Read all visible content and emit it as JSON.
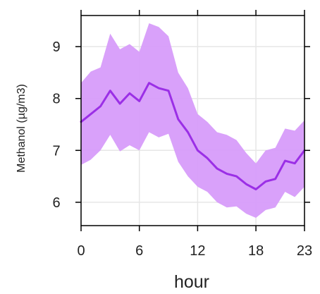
{
  "chart_data": {
    "type": "line",
    "title": "",
    "xlabel": "hour",
    "ylabel": "Methanol (µg/m3)",
    "xlim": [
      0,
      23
    ],
    "ylim": [
      5.55,
      9.6
    ],
    "grid": true,
    "x_ticks": [
      0,
      6,
      12,
      18,
      23
    ],
    "x_tick_labels": [
      "0",
      "6",
      "12",
      "18",
      "23"
    ],
    "y_ticks": [
      6,
      7,
      8,
      9
    ],
    "y_tick_labels": [
      "6",
      "7",
      "8",
      "9"
    ],
    "colors": {
      "line": "#9b2fe6",
      "band": "#d79cfa",
      "grid": "#e6e6e6",
      "frame": "#000000"
    },
    "series": [
      {
        "x": [
          0,
          1,
          2,
          3,
          4,
          5,
          6,
          7,
          8,
          9,
          10,
          11,
          12,
          13,
          14,
          15,
          16,
          17,
          18,
          19,
          20,
          21,
          22,
          23
        ],
        "values": [
          7.55,
          7.7,
          7.85,
          8.15,
          7.9,
          8.1,
          7.95,
          8.3,
          8.2,
          8.15,
          7.6,
          7.35,
          7.0,
          6.85,
          6.65,
          6.55,
          6.5,
          6.35,
          6.25,
          6.4,
          6.45,
          6.8,
          6.75,
          7.0
        ],
        "lower": [
          6.72,
          6.82,
          7.0,
          7.3,
          6.98,
          7.1,
          7.0,
          7.35,
          7.25,
          7.32,
          6.78,
          6.5,
          6.3,
          6.2,
          6.0,
          5.9,
          5.92,
          5.78,
          5.7,
          5.85,
          5.9,
          6.2,
          6.1,
          6.3
        ],
        "upper": [
          8.3,
          8.52,
          8.6,
          9.25,
          8.95,
          9.05,
          8.9,
          9.45,
          9.38,
          9.2,
          8.5,
          8.2,
          7.7,
          7.55,
          7.35,
          7.3,
          7.2,
          6.95,
          6.75,
          7.0,
          7.05,
          7.42,
          7.38,
          7.58
        ]
      }
    ]
  }
}
